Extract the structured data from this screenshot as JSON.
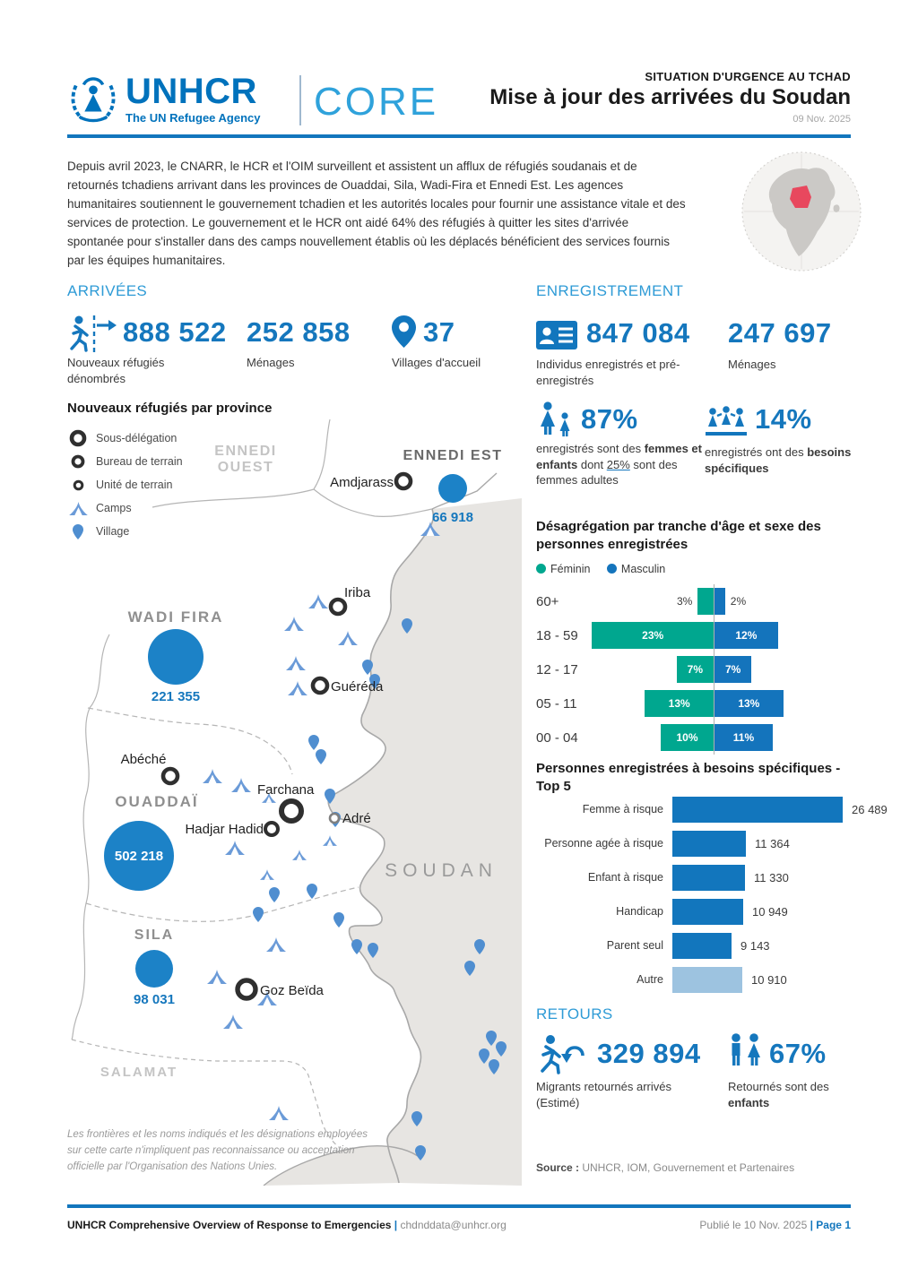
{
  "header": {
    "logo": {
      "word": "UNHCR",
      "tagline": "The UN Refugee Agency",
      "product": "CORE"
    },
    "situation": "SITUATION D'URGENCE AU TCHAD",
    "title": "Mise à jour des arrivées du Soudan",
    "date": "09 Nov. 2025"
  },
  "intro": "Depuis avril 2023, le CNARR, le HCR et l'OIM surveillent et assistent un afflux de réfugiés soudanais et de retournés tchadiens arrivant dans les provinces de Ouaddai, Sila, Wadi-Fira et Ennedi Est. Les agences humanitaires soutiennent le gouvernement tchadien et les autorités locales pour fournir une assistance vitale et des services de protection. Le gouvernement et le HCR ont aidé 64% des réfugiés à quitter les sites d'arrivée spontanée pour s'installer dans des camps nouvellement établis où les déplacés bénéficient des services fournis par les équipes humanitaires.",
  "arrivees": {
    "heading": "ARRIVÉES",
    "new_refugees": {
      "value": "888 522",
      "label": "Nouveaux réfugiés dénombrés"
    },
    "households": {
      "value": "252 858",
      "label": "Ménages"
    },
    "villages": {
      "value": "37",
      "label": "Villages d'accueil"
    }
  },
  "map": {
    "title": "Nouveaux réfugiés par province",
    "legend": [
      "Sous-délégation",
      "Bureau de terrain",
      "Unité de terrain",
      "Camps",
      "Village"
    ],
    "provinces": {
      "ennedi_ouest_1": "ENNEDI",
      "ennedi_ouest_2": "OUEST",
      "ennedi_est": {
        "name": "ENNEDI EST",
        "value": "66 918"
      },
      "wadi_fira": {
        "name": "WADI FIRA",
        "value": "221 355"
      },
      "ouaddai": {
        "name": "OUADDAÏ",
        "value": "502 218"
      },
      "sila": {
        "name": "SILA",
        "value": "98 031"
      },
      "salamat": "SALAMAT"
    },
    "neighbor": "SOUDAN",
    "cities": {
      "amdjarass": "Amdjarass",
      "iriba": "Iriba",
      "guereda": "Guéréda",
      "abeche": "Abéché",
      "farchana": "Farchana",
      "hadjar_hadid": "Hadjar Hadid",
      "adre": "Adré",
      "goz_beida": "Goz Beïda"
    },
    "disclaimer": "Les frontières et les noms indiqués et les désignations employées sur cette carte n'impliquent pas reconnaissance ou acceptation officielle par l'Organisation des Nations Unies."
  },
  "enregistrement": {
    "heading": "ENREGISTREMENT",
    "individuals": {
      "value": "847 084",
      "label": "Individus enregistrés et pré-enregistrés"
    },
    "households": {
      "value": "247 697",
      "label": "Ménages"
    },
    "women_children": {
      "value": "87%",
      "desc_parts": [
        {
          "t": "enregistrés sont des "
        },
        {
          "t": "femmes et enfants",
          "b": true
        },
        {
          "t": " dont "
        },
        {
          "t": "25%",
          "u": true
        },
        {
          "t": " sont des femmes adultes"
        }
      ]
    },
    "specific_needs": {
      "value": "14%",
      "desc_parts": [
        {
          "t": "enregistrés ont des "
        },
        {
          "t": "besoins spécifiques",
          "b": true
        }
      ]
    }
  },
  "chart_data": [
    {
      "type": "pyramid-bar",
      "title": "Désagrégation par tranche d'âge et sexe des personnes enregistrées",
      "legend": [
        "Féminin",
        "Masculin"
      ],
      "legend_colors": [
        "#00A78F",
        "#1474BC"
      ],
      "categories": [
        "60+",
        "18 - 59",
        "12 - 17",
        "05 - 11",
        "00 - 04"
      ],
      "series": [
        {
          "name": "Féminin",
          "values": [
            3,
            23,
            7,
            13,
            10
          ]
        },
        {
          "name": "Masculin",
          "values": [
            2,
            12,
            7,
            13,
            11
          ]
        }
      ],
      "unit": "%"
    },
    {
      "type": "bar",
      "orientation": "horizontal",
      "title": "Personnes enregistrées à besoins spécifiques - Top 5",
      "categories": [
        "Femme à risque",
        "Personne agée à risque",
        "Enfant à risque",
        "Handicap",
        "Parent seul",
        "Autre"
      ],
      "values": [
        26489,
        11364,
        11330,
        10949,
        9143,
        10910
      ],
      "value_labels": [
        "26 489",
        "11 364",
        "11 330",
        "10 949",
        "9 143",
        "10 910"
      ],
      "bar_colors": [
        "#1276BD",
        "#1276BD",
        "#1276BD",
        "#1276BD",
        "#1276BD",
        "#9DC3E0"
      ]
    }
  ],
  "retours": {
    "heading": "RETOURS",
    "migrants": {
      "value": "329 894",
      "label": "Migrants retournés arrivés (Estimé)"
    },
    "children": {
      "value": "67%",
      "desc_parts": [
        {
          "t": "Retournés sont des "
        },
        {
          "t": "enfants",
          "b": true
        }
      ]
    },
    "source_label": "Source :",
    "source": " UNHCR, IOM, Gouvernement et Partenaires"
  },
  "footer": {
    "left_bold": "UNHCR Comprehensive Overview of Response to Emergencies",
    "sep": " | ",
    "email": "chdnddata@unhcr.org",
    "published": "Publié le 10 Nov. 2025 ",
    "page_sep": "| ",
    "page": "Page 1"
  },
  "colors": {
    "unhcr_blue": "#0072BC",
    "section_blue": "#2E9BD6",
    "number_blue": "#1577BD",
    "rule_blue": "#1276BD",
    "teal": "#00A78F",
    "masculin_blue": "#1474BC",
    "bar_light_blue": "#9DC3E0",
    "map_circle_blue": "#1C82C7",
    "camp_blue": "#6B9BD8",
    "pin_blue": "#4F8ED0",
    "sudan_gray": "#E7E5E2",
    "chad_red": "#E8485E"
  }
}
